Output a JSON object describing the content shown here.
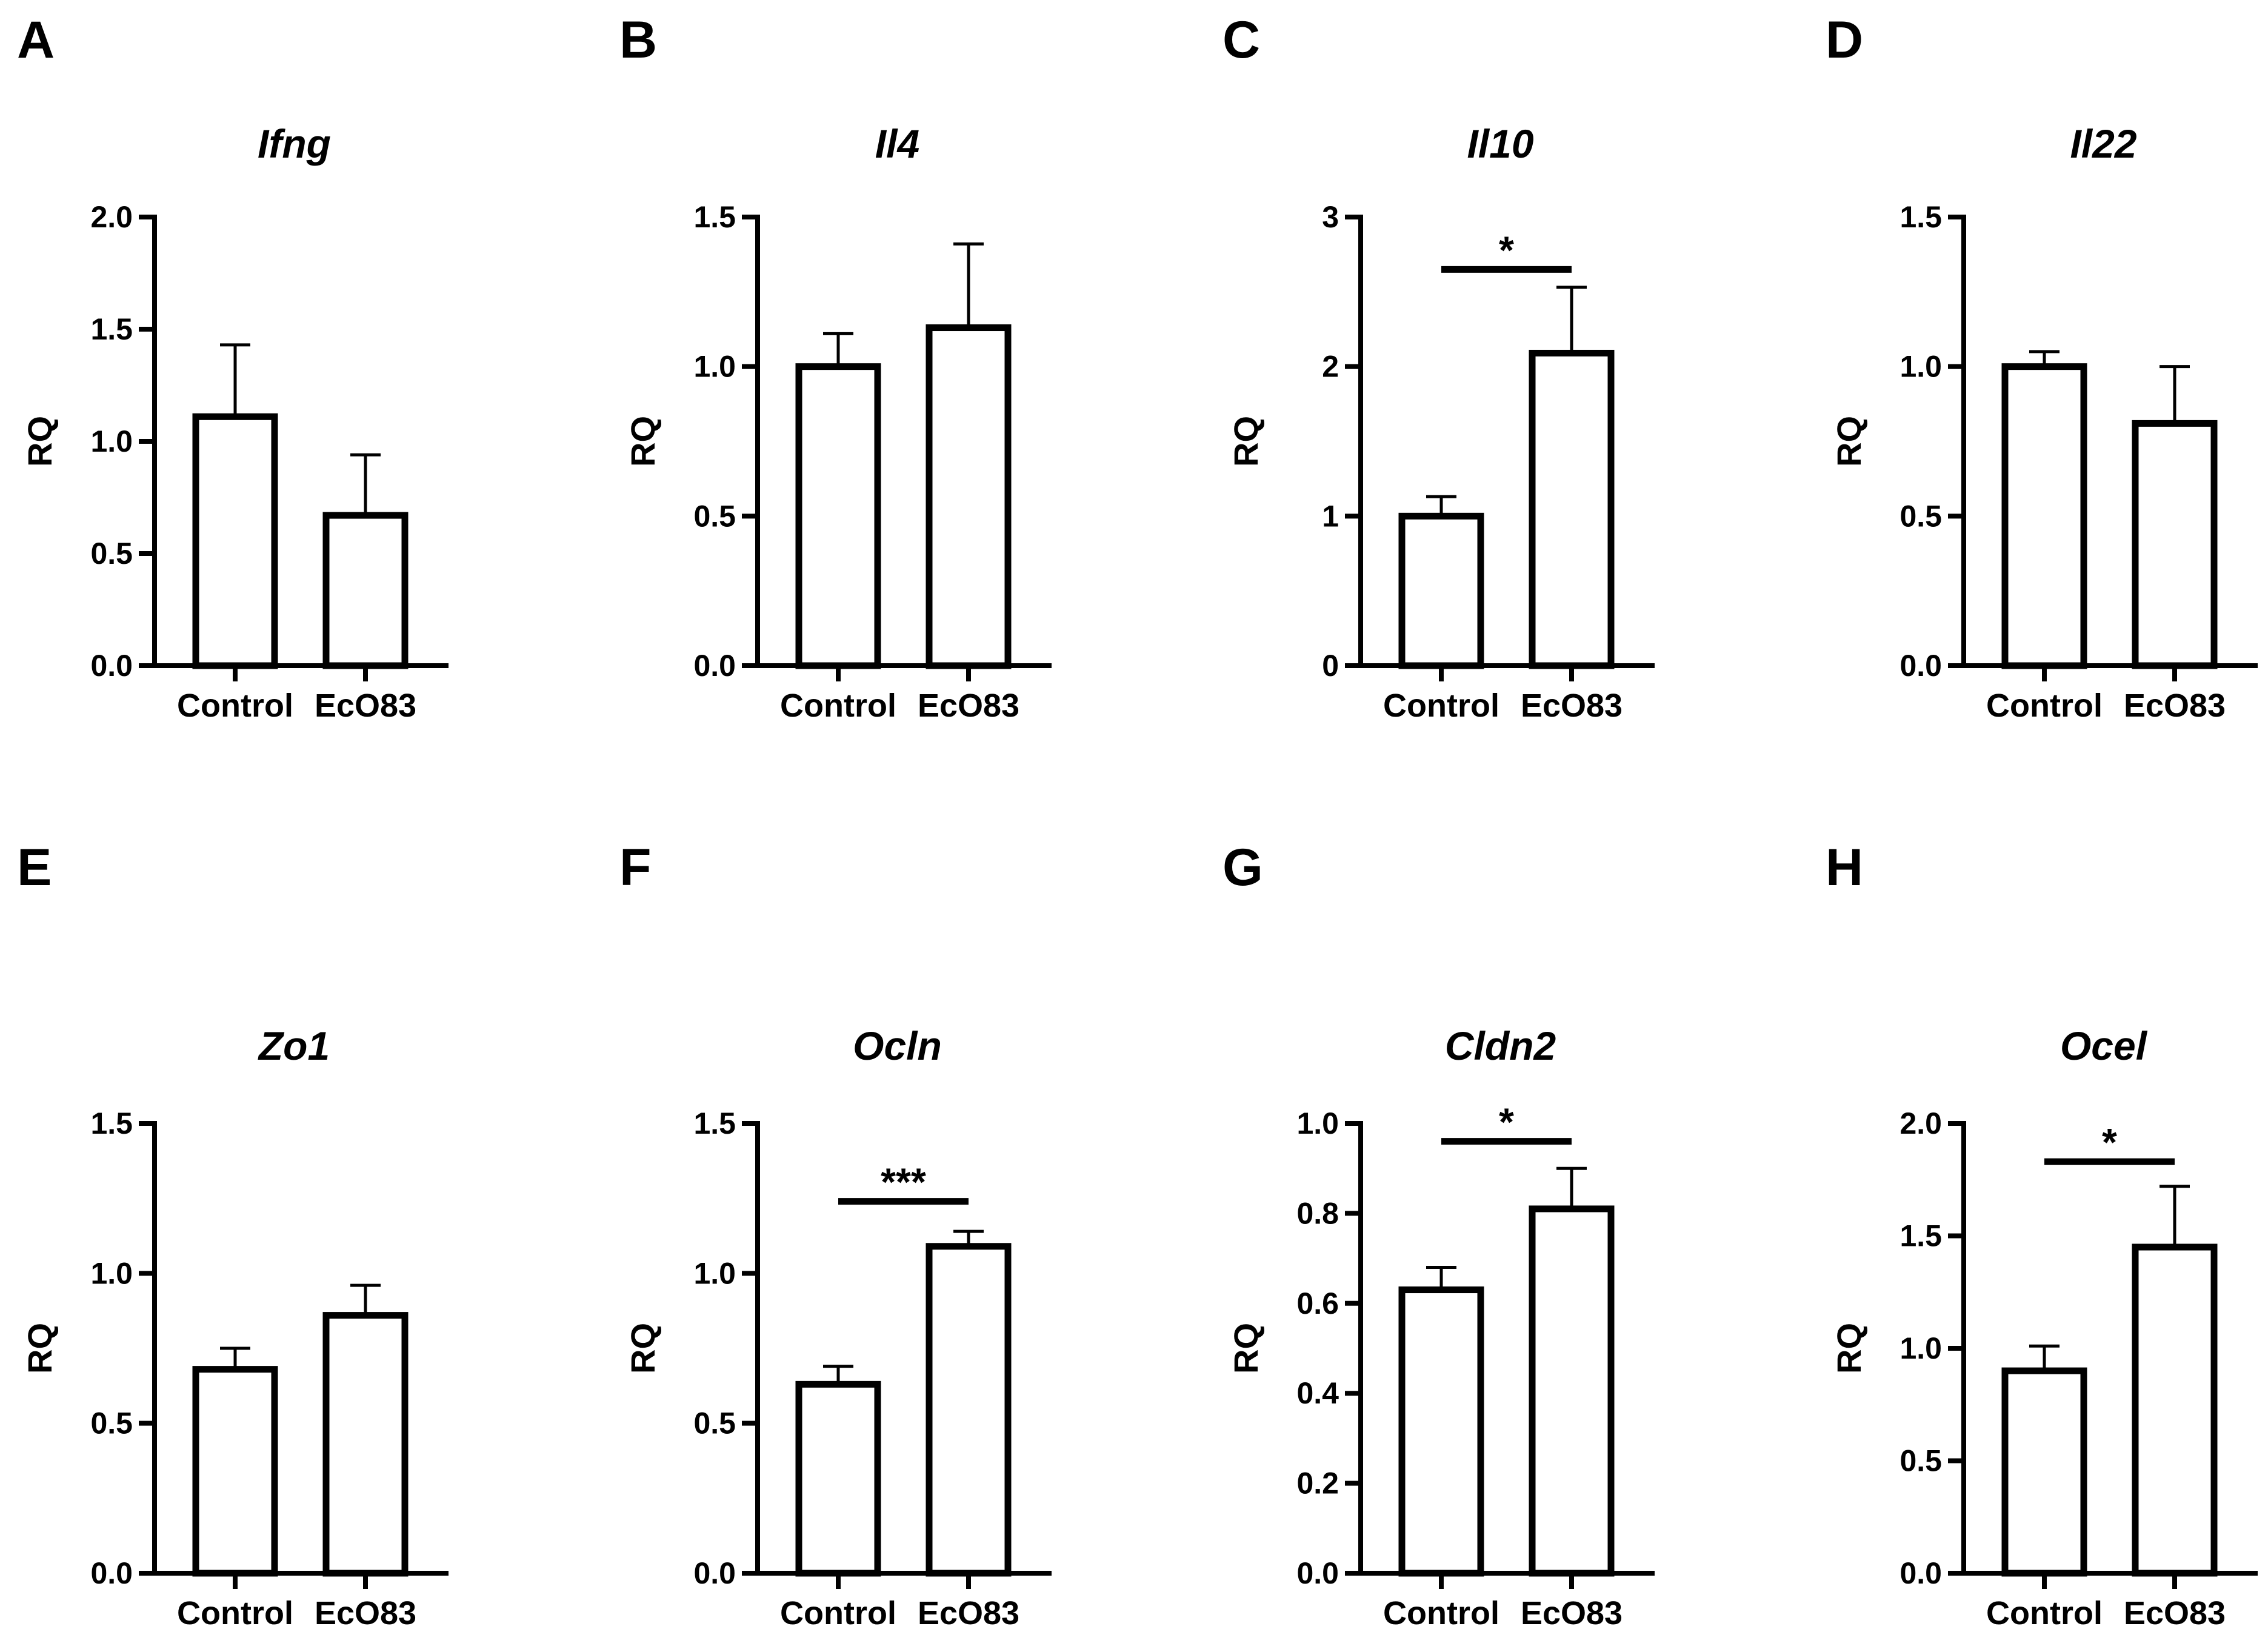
{
  "chart_data": [
    {
      "panel": "A",
      "type": "bar",
      "title": "Ifng",
      "ylabel": "RQ",
      "categories": [
        "Control",
        "EcO83"
      ],
      "values": [
        1.11,
        0.67
      ],
      "errors": [
        0.32,
        0.27
      ],
      "ylim": [
        0,
        2
      ],
      "yticks": [
        "0.0",
        "0.5",
        "1.0",
        "1.5",
        "2.0"
      ],
      "significance": null
    },
    {
      "panel": "B",
      "type": "bar",
      "title": "Il4",
      "ylabel": "RQ",
      "categories": [
        "Control",
        "EcO83"
      ],
      "values": [
        1.0,
        1.13
      ],
      "errors": [
        0.11,
        0.28
      ],
      "ylim": [
        0,
        1.5
      ],
      "yticks": [
        "0.0",
        "0.5",
        "1.0",
        "1.5"
      ],
      "significance": null
    },
    {
      "panel": "C",
      "type": "bar",
      "title": "Il10",
      "ylabel": "RQ",
      "categories": [
        "Control",
        "EcO83"
      ],
      "values": [
        1.0,
        2.09
      ],
      "errors": [
        0.13,
        0.44
      ],
      "ylim": [
        0,
        3
      ],
      "yticks": [
        "0",
        "1",
        "2",
        "3"
      ],
      "significance": {
        "label": "*",
        "y": 2.65
      }
    },
    {
      "panel": "D",
      "type": "bar",
      "title": "Il22",
      "ylabel": "RQ",
      "categories": [
        "Control",
        "EcO83"
      ],
      "values": [
        1.0,
        0.81
      ],
      "errors": [
        0.05,
        0.19
      ],
      "ylim": [
        0,
        1.5
      ],
      "yticks": [
        "0.0",
        "0.5",
        "1.0",
        "1.5"
      ],
      "significance": null
    },
    {
      "panel": "E",
      "type": "bar",
      "title": "Zo1",
      "ylabel": "RQ",
      "categories": [
        "Control",
        "EcO83"
      ],
      "values": [
        0.68,
        0.86
      ],
      "errors": [
        0.07,
        0.1
      ],
      "ylim": [
        0,
        1.5
      ],
      "yticks": [
        "0.0",
        "0.5",
        "1.0",
        "1.5"
      ],
      "significance": null
    },
    {
      "panel": "F",
      "type": "bar",
      "title": "Ocln",
      "ylabel": "RQ",
      "categories": [
        "Control",
        "EcO83"
      ],
      "values": [
        0.63,
        1.09
      ],
      "errors": [
        0.06,
        0.05
      ],
      "ylim": [
        0,
        1.5
      ],
      "yticks": [
        "0.0",
        "0.5",
        "1.0",
        "1.5"
      ],
      "significance": {
        "label": "***",
        "y": 1.24
      }
    },
    {
      "panel": "G",
      "type": "bar",
      "title": "Cldn2",
      "ylabel": "RQ",
      "categories": [
        "Control",
        "EcO83"
      ],
      "values": [
        0.63,
        0.81
      ],
      "errors": [
        0.05,
        0.09
      ],
      "ylim": [
        0,
        1.0
      ],
      "yticks": [
        "0.0",
        "0.2",
        "0.4",
        "0.6",
        "0.8",
        "1.0"
      ],
      "significance": {
        "label": "*",
        "y": 0.96
      }
    },
    {
      "panel": "H",
      "type": "bar",
      "title": "Ocel",
      "ylabel": "RQ",
      "categories": [
        "Control",
        "EcO83"
      ],
      "values": [
        0.9,
        1.45
      ],
      "errors": [
        0.11,
        0.27
      ],
      "ylim": [
        0,
        2
      ],
      "yticks": [
        "0.0",
        "0.5",
        "1.0",
        "1.5",
        "2.0"
      ],
      "significance": {
        "label": "*",
        "y": 1.83
      }
    }
  ]
}
